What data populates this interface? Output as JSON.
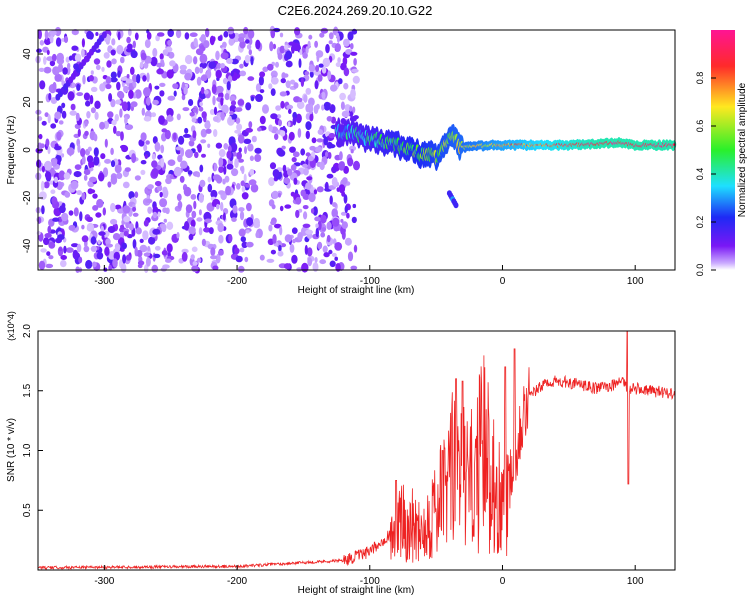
{
  "title": "C2E6.2024.269.20.10.G22",
  "chart_data": [
    {
      "type": "heatmap",
      "xlabel": "Height of straight line (km)",
      "ylabel": "Frequency (Hz)",
      "xlim": [
        -350,
        130
      ],
      "ylim": [
        -50,
        50
      ],
      "x_ticks": [
        -300,
        -200,
        -100,
        0,
        100
      ],
      "y_ticks": [
        -40,
        -20,
        0,
        20,
        40
      ],
      "colorbar": {
        "label": "Normalized spectral amplitude",
        "range": [
          0,
          1
        ],
        "ticks": [
          "0.0",
          "0.2",
          "0.4",
          "0.6",
          "0.8"
        ],
        "colormap": [
          "#ffffff",
          "#c9a8ff",
          "#7a18f5",
          "#1e2af5",
          "#1ee0ff",
          "#2af02a",
          "#ffe820",
          "#ff2a2a",
          "#ff1493"
        ]
      },
      "features": [
        {
          "name": "noise-field",
          "x_range": [
            -350,
            -110
          ],
          "y_range": [
            -50,
            50
          ],
          "amplitude": 0.2
        },
        {
          "name": "diagonal-streak",
          "x": [
            -335,
            -300
          ],
          "y": [
            22,
            48
          ],
          "amplitude": 0.25
        },
        {
          "name": "main-signal",
          "x": [
            -120,
            -100,
            -80,
            -65,
            -50,
            -40,
            -30,
            -10,
            0,
            50,
            90,
            100,
            130
          ],
          "y": [
            8,
            5,
            2,
            -1,
            -3,
            6,
            1,
            2,
            2,
            2,
            3,
            2,
            2
          ],
          "amplitude_start": 0.3,
          "amplitude_end": 0.9
        },
        {
          "name": "secondary-blob",
          "x": [
            -40,
            -35
          ],
          "y": [
            -18,
            -23
          ],
          "amplitude": 0.3
        }
      ]
    },
    {
      "type": "line",
      "xlabel": "Height of straight line (km)",
      "ylabel": "SNR (10 * v/v)",
      "y_multiplier": "(x10^4)",
      "xlim": [
        -350,
        130
      ],
      "ylim": [
        0,
        2.0
      ],
      "x_ticks": [
        -300,
        -200,
        -100,
        0,
        100
      ],
      "y_ticks": [
        "0.5",
        "1.0",
        "1.5",
        "2.0"
      ],
      "color": "#ee2222",
      "envelope": {
        "x": [
          -350,
          -200,
          -170,
          -120,
          -100,
          -85,
          -75,
          -60,
          -45,
          -35,
          -25,
          -20,
          -15,
          -10,
          0,
          10,
          15,
          20,
          25,
          35,
          50,
          70,
          85,
          90,
          95,
          100,
          110,
          130
        ],
        "y": [
          0.02,
          0.03,
          0.05,
          0.08,
          0.15,
          0.3,
          0.4,
          0.35,
          0.6,
          0.9,
          0.7,
          0.8,
          1.0,
          0.9,
          0.5,
          1.0,
          1.3,
          1.45,
          1.5,
          1.58,
          1.57,
          1.52,
          1.55,
          1.6,
          1.5,
          1.52,
          1.5,
          1.48
        ]
      },
      "spikes": [
        {
          "x": -80,
          "y": 0.75
        },
        {
          "x": -45,
          "y": 1.0
        },
        {
          "x": -35,
          "y": 1.6
        },
        {
          "x": -30,
          "y": 1.58
        },
        {
          "x": 9,
          "y": 1.85
        },
        {
          "x": 2,
          "y": 1.7
        },
        {
          "x": 94,
          "y": 2.0
        },
        {
          "x": 95,
          "y": 0.72
        }
      ]
    }
  ]
}
